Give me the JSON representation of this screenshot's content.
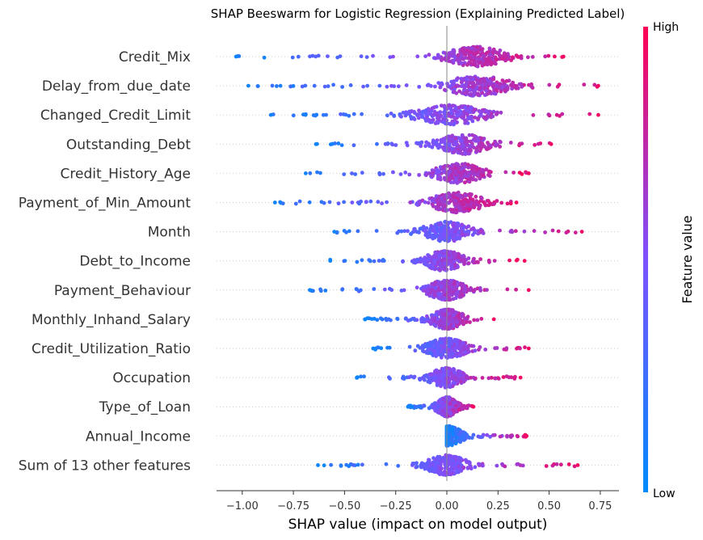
{
  "chart_data": {
    "type": "scatter",
    "subtype": "beeswarm",
    "title": "SHAP Beeswarm for Logistic Regression (Explaining Predicted Label)",
    "xlabel": "SHAP value (impact on model output)",
    "xlim": [
      -1.12,
      0.84
    ],
    "xticks": [
      {
        "value": -1.0,
        "label": "−1.00"
      },
      {
        "value": -0.75,
        "label": "−0.75"
      },
      {
        "value": -0.5,
        "label": "−0.50"
      },
      {
        "value": -0.25,
        "label": "−0.25"
      },
      {
        "value": 0.0,
        "label": "0.00"
      },
      {
        "value": 0.25,
        "label": "0.25"
      },
      {
        "value": 0.5,
        "label": "0.50"
      },
      {
        "value": 0.75,
        "label": "0.75"
      }
    ],
    "colorbar": {
      "title": "Feature value",
      "high_label": "High",
      "low_label": "Low",
      "high_color": "#ff0052",
      "low_color": "#008bfb"
    },
    "features": [
      {
        "name": "Credit_Mix",
        "min": -1.03,
        "max": 0.57,
        "center": 0.14,
        "spread": 0.45
      },
      {
        "name": "Delay_from_due_date",
        "min": -0.97,
        "max": 0.74,
        "center": 0.15,
        "spread": 0.5
      },
      {
        "name": "Changed_Credit_Limit",
        "min": -0.86,
        "max": 0.74,
        "center": 0.02,
        "spread": 0.5
      },
      {
        "name": "Outstanding_Debt",
        "min": -0.64,
        "max": 0.51,
        "center": 0.08,
        "spread": 0.4
      },
      {
        "name": "Credit_History_Age",
        "min": -0.69,
        "max": 0.4,
        "center": 0.06,
        "spread": 0.35
      },
      {
        "name": "Payment_of_Min_Amount",
        "min": -0.84,
        "max": 0.34,
        "center": 0.05,
        "spread": 0.4
      },
      {
        "name": "Month",
        "min": -0.55,
        "max": 0.66,
        "center": 0.0,
        "spread": 0.35
      },
      {
        "name": "Debt_to_Income",
        "min": -0.57,
        "max": 0.38,
        "center": -0.01,
        "spread": 0.3
      },
      {
        "name": "Payment_Behaviour",
        "min": -0.67,
        "max": 0.4,
        "center": 0.0,
        "spread": 0.3
      },
      {
        "name": "Monthly_Inhand_Salary",
        "min": -0.4,
        "max": 0.23,
        "center": 0.0,
        "spread": 0.25
      },
      {
        "name": "Credit_Utilization_Ratio",
        "min": -0.36,
        "max": 0.4,
        "center": 0.0,
        "spread": 0.3
      },
      {
        "name": "Occupation",
        "min": -0.44,
        "max": 0.36,
        "center": 0.0,
        "spread": 0.25
      },
      {
        "name": "Type_of_Loan",
        "min": -0.19,
        "max": 0.13,
        "center": 0.0,
        "spread": 0.15
      },
      {
        "name": "Annual_Income",
        "min": 0.0,
        "max": 0.39,
        "center": 0.01,
        "spread": 0.2
      },
      {
        "name": "Sum of 13 other features",
        "min": -0.63,
        "max": 0.64,
        "center": 0.0,
        "spread": 0.3
      }
    ]
  }
}
